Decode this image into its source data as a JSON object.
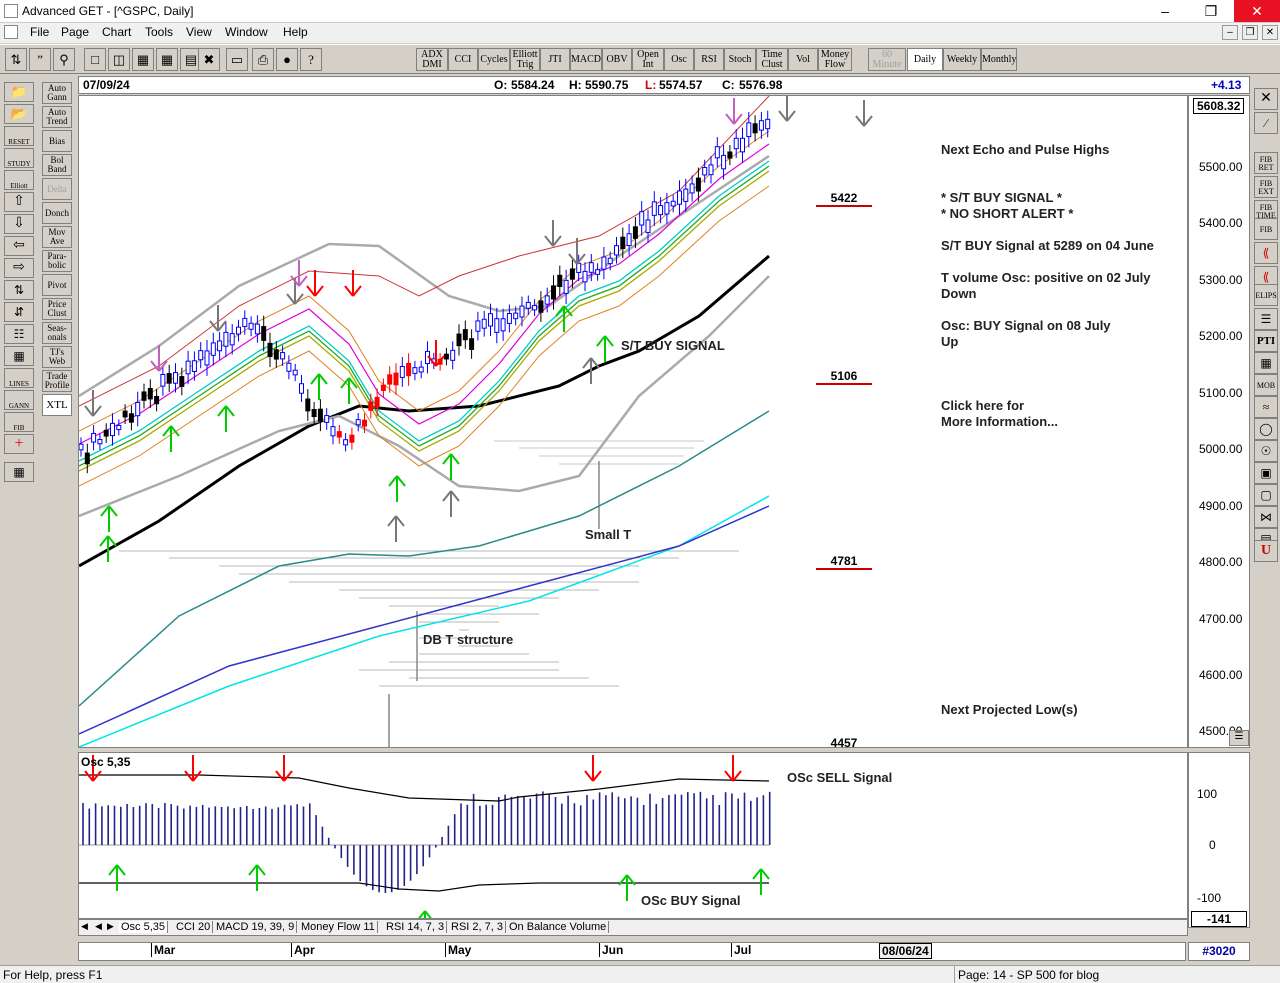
{
  "window": {
    "title": "Advanced GET - [^GSPC, Daily]"
  },
  "menu": [
    "File",
    "Page",
    "Chart",
    "Tools",
    "View",
    "Window",
    "Help"
  ],
  "toolbar": {
    "indicators": [
      {
        "l1": "ADX",
        "l2": "DMI"
      },
      {
        "l1": "CCI",
        "l2": ""
      },
      {
        "l1": "Cycles",
        "l2": ""
      },
      {
        "l1": "Elliott",
        "l2": "Trig"
      },
      {
        "l1": "JTI",
        "l2": ""
      },
      {
        "l1": "MACD",
        "l2": ""
      },
      {
        "l1": "OBV",
        "l2": ""
      },
      {
        "l1": "Open",
        "l2": "Int"
      },
      {
        "l1": "Osc",
        "l2": ""
      },
      {
        "l1": "RSI",
        "l2": ""
      },
      {
        "l1": "Stoch",
        "l2": ""
      },
      {
        "l1": "Time",
        "l2": "Clust"
      },
      {
        "l1": "Vol",
        "l2": ""
      },
      {
        "l1": "Money",
        "l2": "Flow"
      }
    ],
    "periods": [
      {
        "l1": "60",
        "l2": "Minute"
      },
      {
        "l1": "Daily",
        "l2": ""
      },
      {
        "l1": "Weekly",
        "l2": ""
      },
      {
        "l1": "Monthly",
        "l2": ""
      }
    ]
  },
  "left_tools": [
    {
      "l1": "Auto",
      "l2": "Gann"
    },
    {
      "l1": "Auto",
      "l2": "Trend"
    },
    {
      "l1": "Bias",
      "l2": ""
    },
    {
      "l1": "Bol",
      "l2": "Band"
    },
    {
      "l1": "Delta",
      "l2": ""
    },
    {
      "l1": "Donch",
      "l2": ""
    },
    {
      "l1": "Mov",
      "l2": "Ave"
    },
    {
      "l1": "Para-",
      "l2": "bolic"
    },
    {
      "l1": "Pivot",
      "l2": ""
    },
    {
      "l1": "Price",
      "l2": "Clust"
    },
    {
      "l1": "Seas-",
      "l2": "onals"
    },
    {
      "l1": "TJ's",
      "l2": "Web"
    },
    {
      "l1": "Trade",
      "l2": "Profile"
    },
    {
      "l1": "XTL",
      "l2": ""
    }
  ],
  "left_icons": [
    "RESET",
    "STUDY",
    "Elliott",
    "LINES",
    "GANN",
    "FIB"
  ],
  "info": {
    "date": "07/09/24",
    "open_label": "O:",
    "open": "5584.24",
    "high_label": "H:",
    "high": "5590.75",
    "low_label": "L:",
    "low": "5574.57",
    "close_label": "C:",
    "close": "5576.98",
    "change": "+4.13"
  },
  "price_axis": {
    "current": "5608.32",
    "ticks": [
      "5500.00",
      "5400.00",
      "5300.00",
      "5200.00",
      "5100.00",
      "5000.00",
      "4900.00",
      "4800.00",
      "4700.00",
      "4600.00",
      "4500.00"
    ]
  },
  "levels": [
    "5422",
    "5106",
    "4781",
    "4457"
  ],
  "annotations": {
    "echo": "Next Echo and Pulse Highs",
    "buy_signal": "* S/T BUY SIGNAL *",
    "no_short": "* NO SHORT ALERT *",
    "st_buy_at": "S/T BUY Signal at 5289 on 04 June",
    "tvol1": "T volume Osc: positive on 02 July",
    "tvol2": "Down",
    "osc1": "Osc: BUY Signal on 08 July",
    "osc2": "Up",
    "click1": "Click here for",
    "click2": "More Information...",
    "next_low": "Next Projected Low(s)",
    "st_buy_chart": "S/T BUY SIGNAL",
    "small_t": "Small T",
    "db_t": "DB T structure"
  },
  "osc": {
    "label": "Osc 5,35",
    "sell": "OSc SELL Signal",
    "buy": "OSc BUY Signal",
    "axis": [
      "100",
      "0",
      "-100"
    ],
    "current": "-141"
  },
  "tabs": [
    "Osc 5,35",
    "CCI 20",
    "MACD 19, 39, 9",
    "Money Flow 11",
    "RSI 14, 7, 3",
    "RSI 2, 7, 3",
    "On Balance Volume"
  ],
  "months": [
    "Mar",
    "Apr",
    "May",
    "Jun",
    "Jul"
  ],
  "cursor_date": "08/06/24",
  "page_number": "#3020",
  "status": {
    "help": "For Help, press F1",
    "page": "Page: 14 - SP 500 for blog"
  },
  "right_tools": [
    "FIB RET",
    "FIB EXT",
    "FIB TIME",
    "FIB",
    "ELIPS",
    "PTI",
    "MOB"
  ],
  "colors": {
    "up": "#0000ff",
    "down": "#ff0000",
    "buy_arrow": "#00cc00",
    "sell_arrow": "#ff0000",
    "level_line": "#cc0000"
  }
}
